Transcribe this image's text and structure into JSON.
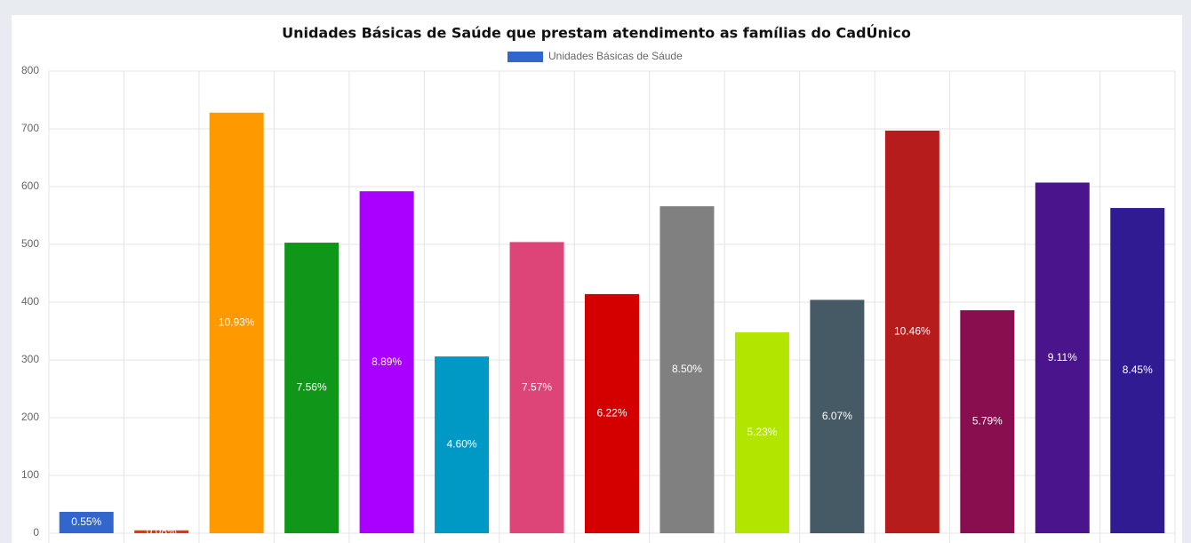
{
  "chart_data": {
    "type": "bar",
    "title": "Unidades Básicas de Saúde que prestam atendimento as famílias do CadÚnico",
    "categories": [
      null,
      null,
      null,
      null,
      null,
      null,
      null,
      null,
      null,
      null,
      null,
      null,
      null,
      null,
      null
    ],
    "series": [
      {
        "name": "Unidades Básicas de Sáude",
        "color": "#3366cc",
        "values": [
          37,
          5,
          728,
          503,
          592,
          306,
          504,
          414,
          566,
          348,
          404,
          697,
          386,
          607,
          563
        ],
        "labels": [
          "0.55%",
          "0.08%",
          "10.93%",
          "7.56%",
          "8.89%",
          "4.60%",
          "7.57%",
          "6.22%",
          "8.50%",
          "5.23%",
          "6.07%",
          "10.46%",
          "5.79%",
          "9.11%",
          "8.45%"
        ],
        "colors": [
          "#3366cc",
          "#dc3912",
          "#ff9900",
          "#109618",
          "#aa00ff",
          "#0099c6",
          "#dd4477",
          "#d40000",
          "#808080",
          "#b2e600",
          "#455a64",
          "#b71c1c",
          "#880e4f",
          "#4a148c",
          "#311b92"
        ]
      }
    ],
    "ylim": [
      0,
      800
    ],
    "yticks": [
      0,
      100,
      200,
      300,
      400,
      500,
      600,
      700,
      800
    ],
    "grid": true
  }
}
